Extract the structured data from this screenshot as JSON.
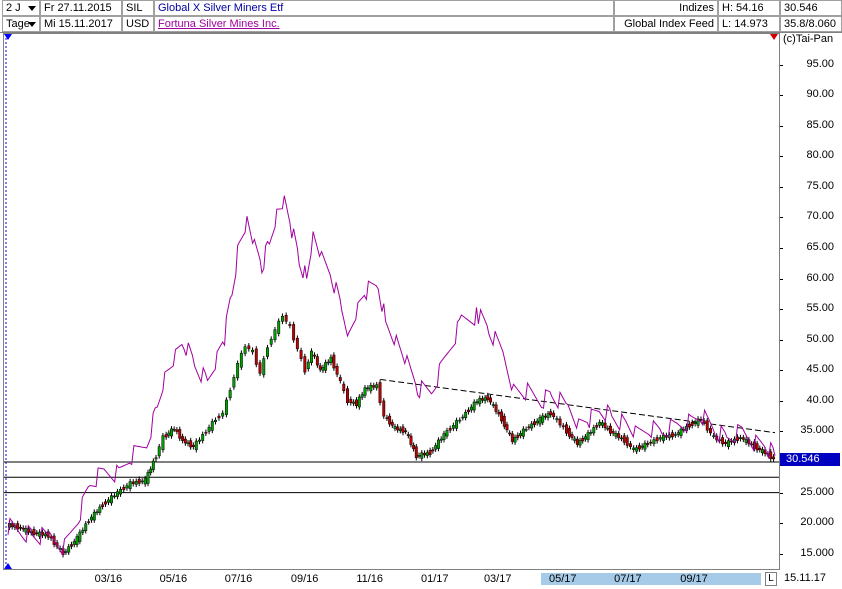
{
  "header": {
    "period": "2 J",
    "interval": "Tage",
    "date_from": "Fr 27.11.2015",
    "date_to": "Mi 15.11.2017",
    "symbol1": "SIL",
    "currency": "USD",
    "name1": "Global X Silver Miners Etf",
    "name2": "Fortuna Silver Mines Inc.",
    "index_label": "Indizes",
    "feed_label": "Global Index Feed",
    "high": "H: 54.16",
    "low": "L: 14.973",
    "last": "30.546",
    "range": "35.8/8.060",
    "copyright": "(c)Tai-Pan"
  },
  "colors": {
    "series1": "#000000",
    "series2": "#a000a0",
    "up_candle": "#00a000",
    "down_candle": "#c00000",
    "price_tag": "#0000c0",
    "name1": "#0000a0",
    "name2": "#a000a0",
    "scrollbar": "#a6cbe8"
  },
  "chart_data": {
    "type": "line",
    "y_unit": "USD",
    "ylim": [
      12.5,
      100
    ],
    "y_ticks": [
      "15.000",
      "20.000",
      "25.000",
      "30.000",
      "35.000",
      "40.00",
      "45.00",
      "50.00",
      "55.00",
      "60.00",
      "65.00",
      "70.00",
      "75.00",
      "80.00",
      "85.00",
      "90.00",
      "95.00"
    ],
    "y_tick_values": [
      15,
      20,
      25,
      30,
      35,
      40,
      45,
      50,
      55,
      60,
      65,
      70,
      75,
      80,
      85,
      90,
      95
    ],
    "x_ticks": [
      "03/16",
      "05/16",
      "07/16",
      "09/16",
      "11/16",
      "01/17",
      "03/17",
      "05/17",
      "07/17",
      "09/17"
    ],
    "x_tick_dates": [
      "2016-03-01",
      "2016-05-01",
      "2016-07-01",
      "2016-09-01",
      "2016-11-01",
      "2017-01-01",
      "2017-03-01",
      "2017-05-01",
      "2017-07-01",
      "2017-09-01"
    ],
    "x_range": [
      "2015-11-27",
      "2017-11-15"
    ],
    "x_end_label": "15.11.17",
    "x_end_marker": "L",
    "current_value_label": "30.546",
    "current_value": 30.546,
    "series": [
      {
        "name": "Global X Silver Miners Etf",
        "style": "candlestick",
        "points": [
          [
            "2015-11-27",
            19.8
          ],
          [
            "2015-12-10",
            19.2
          ],
          [
            "2015-12-20",
            18.5
          ],
          [
            "2016-01-05",
            18.0
          ],
          [
            "2016-01-19",
            15.0
          ],
          [
            "2016-02-01",
            17.5
          ],
          [
            "2016-02-12",
            20.5
          ],
          [
            "2016-02-25",
            23.0
          ],
          [
            "2016-03-10",
            25.0
          ],
          [
            "2016-03-22",
            26.5
          ],
          [
            "2016-04-05",
            27.0
          ],
          [
            "2016-04-15",
            31.0
          ],
          [
            "2016-04-22",
            34.0
          ],
          [
            "2016-05-02",
            35.5
          ],
          [
            "2016-05-10",
            33.5
          ],
          [
            "2016-05-20",
            32.5
          ],
          [
            "2016-06-01",
            35.0
          ],
          [
            "2016-06-10",
            37.0
          ],
          [
            "2016-06-17",
            38.0
          ],
          [
            "2016-06-24",
            42.0
          ],
          [
            "2016-07-01",
            46.0
          ],
          [
            "2016-07-08",
            49.0
          ],
          [
            "2016-07-15",
            48.0
          ],
          [
            "2016-07-22",
            44.5
          ],
          [
            "2016-07-29",
            49.0
          ],
          [
            "2016-08-05",
            51.5
          ],
          [
            "2016-08-12",
            54.0
          ],
          [
            "2016-08-19",
            52.0
          ],
          [
            "2016-08-26",
            48.5
          ],
          [
            "2016-09-02",
            45.0
          ],
          [
            "2016-09-08",
            48.0
          ],
          [
            "2016-09-16",
            45.0
          ],
          [
            "2016-09-26",
            47.0
          ],
          [
            "2016-10-05",
            43.0
          ],
          [
            "2016-10-12",
            40.0
          ],
          [
            "2016-10-20",
            39.5
          ],
          [
            "2016-10-28",
            42.0
          ],
          [
            "2016-11-08",
            42.5
          ],
          [
            "2016-11-15",
            37.5
          ],
          [
            "2016-11-25",
            35.5
          ],
          [
            "2016-12-05",
            35.0
          ],
          [
            "2016-12-15",
            31.0
          ],
          [
            "2016-12-28",
            31.5
          ],
          [
            "2017-01-10",
            34.5
          ],
          [
            "2017-01-25",
            37.0
          ],
          [
            "2017-02-10",
            40.0
          ],
          [
            "2017-02-20",
            40.5
          ],
          [
            "2017-03-05",
            37.0
          ],
          [
            "2017-03-15",
            33.5
          ],
          [
            "2017-03-28",
            35.5
          ],
          [
            "2017-04-10",
            37.0
          ],
          [
            "2017-04-20",
            38.0
          ],
          [
            "2017-05-05",
            35.0
          ],
          [
            "2017-05-15",
            33.0
          ],
          [
            "2017-05-25",
            34.5
          ],
          [
            "2017-06-05",
            36.5
          ],
          [
            "2017-06-15",
            35.0
          ],
          [
            "2017-06-28",
            33.5
          ],
          [
            "2017-07-07",
            32.0
          ],
          [
            "2017-07-20",
            33.0
          ],
          [
            "2017-08-01",
            34.0
          ],
          [
            "2017-08-15",
            34.5
          ],
          [
            "2017-08-28",
            36.0
          ],
          [
            "2017-09-08",
            37.0
          ],
          [
            "2017-09-20",
            34.0
          ],
          [
            "2017-10-01",
            33.0
          ],
          [
            "2017-10-15",
            34.0
          ],
          [
            "2017-10-28",
            32.5
          ],
          [
            "2017-11-07",
            31.5
          ],
          [
            "2017-11-15",
            30.5
          ]
        ]
      },
      {
        "name": "Fortuna Silver Mines Inc.",
        "style": "line",
        "points": [
          [
            "2015-11-27",
            19.5
          ],
          [
            "2015-12-10",
            18.5
          ],
          [
            "2015-12-20",
            18.0
          ],
          [
            "2016-01-05",
            17.8
          ],
          [
            "2016-01-19",
            16.0
          ],
          [
            "2016-02-01",
            21.0
          ],
          [
            "2016-02-12",
            26.5
          ],
          [
            "2016-02-25",
            28.5
          ],
          [
            "2016-03-10",
            28.0
          ],
          [
            "2016-03-22",
            31.0
          ],
          [
            "2016-04-05",
            33.0
          ],
          [
            "2016-04-15",
            39.0
          ],
          [
            "2016-04-22",
            44.0
          ],
          [
            "2016-05-02",
            47.0
          ],
          [
            "2016-05-10",
            49.5
          ],
          [
            "2016-05-20",
            46.0
          ],
          [
            "2016-06-01",
            43.0
          ],
          [
            "2016-06-10",
            47.0
          ],
          [
            "2016-06-17",
            50.5
          ],
          [
            "2016-06-24",
            58.0
          ],
          [
            "2016-07-01",
            66.0
          ],
          [
            "2016-07-08",
            69.5
          ],
          [
            "2016-07-15",
            65.0
          ],
          [
            "2016-07-22",
            62.0
          ],
          [
            "2016-07-29",
            66.0
          ],
          [
            "2016-08-05",
            71.0
          ],
          [
            "2016-08-12",
            72.5
          ],
          [
            "2016-08-19",
            68.0
          ],
          [
            "2016-08-26",
            63.0
          ],
          [
            "2016-09-02",
            60.0
          ],
          [
            "2016-09-08",
            67.0
          ],
          [
            "2016-09-16",
            63.0
          ],
          [
            "2016-09-26",
            60.0
          ],
          [
            "2016-10-05",
            55.0
          ],
          [
            "2016-10-12",
            51.0
          ],
          [
            "2016-10-20",
            55.0
          ],
          [
            "2016-10-28",
            58.0
          ],
          [
            "2016-11-08",
            59.0
          ],
          [
            "2016-11-15",
            53.0
          ],
          [
            "2016-11-25",
            50.0
          ],
          [
            "2016-12-05",
            46.0
          ],
          [
            "2016-12-15",
            42.0
          ],
          [
            "2016-12-28",
            41.5
          ],
          [
            "2017-01-10",
            47.0
          ],
          [
            "2017-01-25",
            53.0
          ],
          [
            "2017-02-10",
            54.0
          ],
          [
            "2017-02-20",
            51.5
          ],
          [
            "2017-03-05",
            48.0
          ],
          [
            "2017-03-15",
            42.0
          ],
          [
            "2017-03-28",
            41.5
          ],
          [
            "2017-04-10",
            40.0
          ],
          [
            "2017-04-20",
            41.0
          ],
          [
            "2017-05-05",
            39.0
          ],
          [
            "2017-05-15",
            36.0
          ],
          [
            "2017-05-25",
            37.0
          ],
          [
            "2017-06-05",
            38.5
          ],
          [
            "2017-06-15",
            37.5
          ],
          [
            "2017-06-28",
            36.0
          ],
          [
            "2017-07-07",
            34.5
          ],
          [
            "2017-07-20",
            35.5
          ],
          [
            "2017-08-01",
            35.0
          ],
          [
            "2017-08-15",
            36.0
          ],
          [
            "2017-08-28",
            36.5
          ],
          [
            "2017-09-08",
            37.5
          ],
          [
            "2017-09-20",
            35.0
          ],
          [
            "2017-10-01",
            34.0
          ],
          [
            "2017-10-15",
            35.0
          ],
          [
            "2017-10-28",
            33.0
          ],
          [
            "2017-11-07",
            32.5
          ],
          [
            "2017-11-15",
            31.0
          ]
        ]
      }
    ],
    "trendline": [
      [
        "2016-11-10",
        43.5
      ],
      [
        "2017-11-15",
        34.8
      ]
    ],
    "horizontal_lines": [
      30.0,
      27.5,
      25.0
    ]
  }
}
